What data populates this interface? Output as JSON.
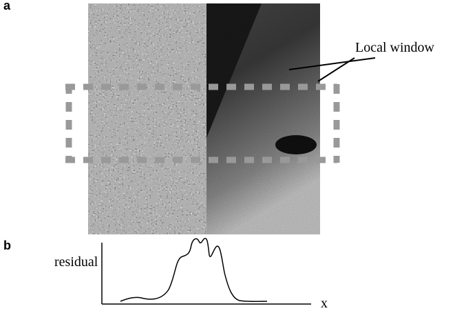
{
  "panel_a": {
    "label": "a",
    "annotation": "Local window"
  },
  "panel_b": {
    "label": "b",
    "y_label": "residual",
    "x_label": "x"
  }
}
